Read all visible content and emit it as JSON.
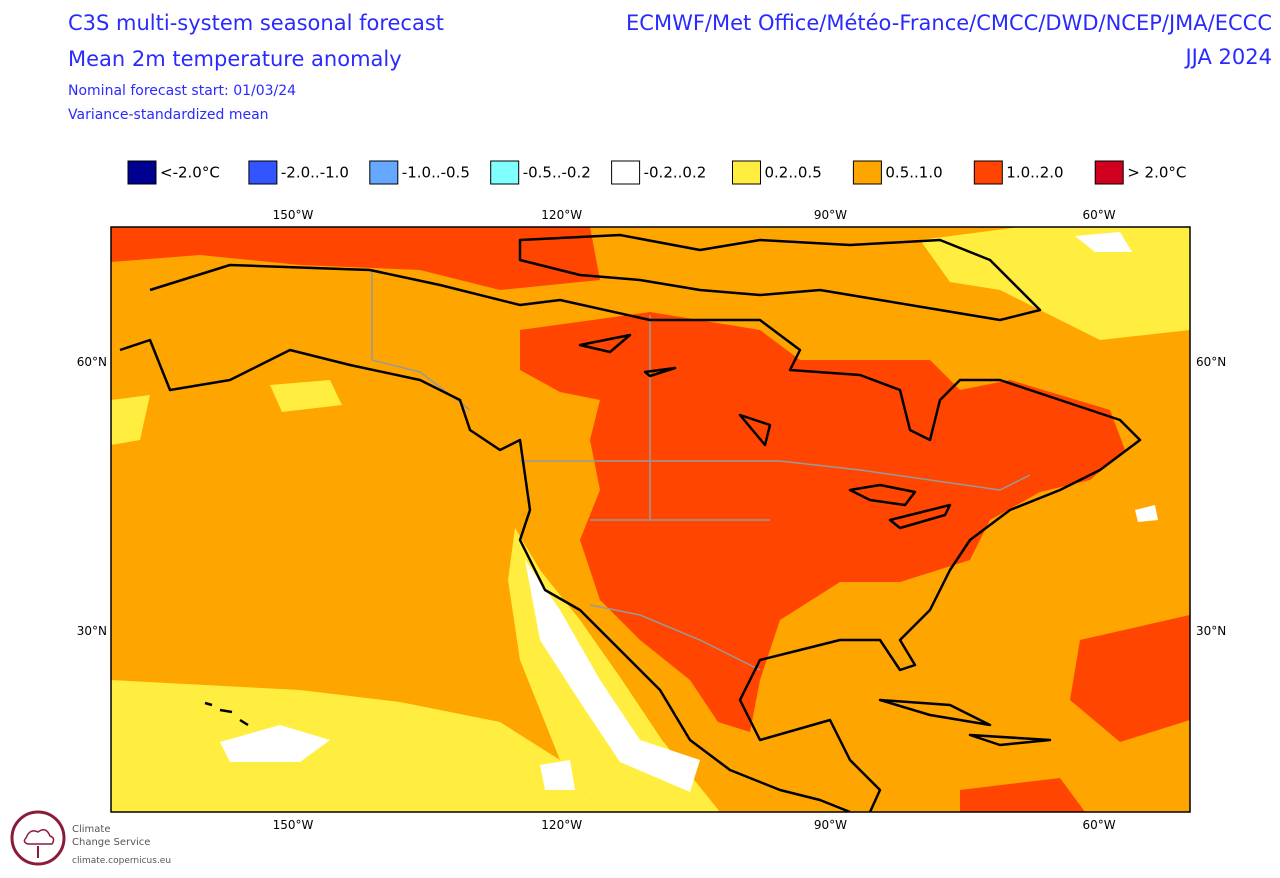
{
  "header": {
    "title": "C3S multi-system seasonal forecast",
    "subtitle": "Mean 2m temperature anomaly",
    "forecast_start": "Nominal forecast start: 01/03/24",
    "method": "Variance-standardized mean",
    "centres": "ECMWF/Met Office/Météo-France/CMCC/DWD/NCEP/JMA/ECCC",
    "season": "JJA 2024"
  },
  "legend": [
    {
      "label": "<-2.0°C",
      "color": "#000090"
    },
    {
      "label": "-2.0..-1.0",
      "color": "#3355ff"
    },
    {
      "label": "-1.0..-0.5",
      "color": "#66a8ff"
    },
    {
      "label": "-0.5..-0.2",
      "color": "#80ffff"
    },
    {
      "label": "-0.2..0.2",
      "color": "#ffffff"
    },
    {
      "label": "0.2..0.5",
      "color": "#ffee40"
    },
    {
      "label": "0.5..1.0",
      "color": "#ffa500"
    },
    {
      "label": "1.0..2.0",
      "color": "#ff4500"
    },
    {
      "label": "> 2.0°C",
      "color": "#d0001f"
    }
  ],
  "axes": {
    "longitudes": [
      "150°W",
      "120°W",
      "90°W",
      "60°W"
    ],
    "latitudes": [
      "60°N",
      "30°N"
    ]
  },
  "logo": {
    "line1": "Climate",
    "line2": "Change Service",
    "url": "climate.copernicus.eu"
  }
}
